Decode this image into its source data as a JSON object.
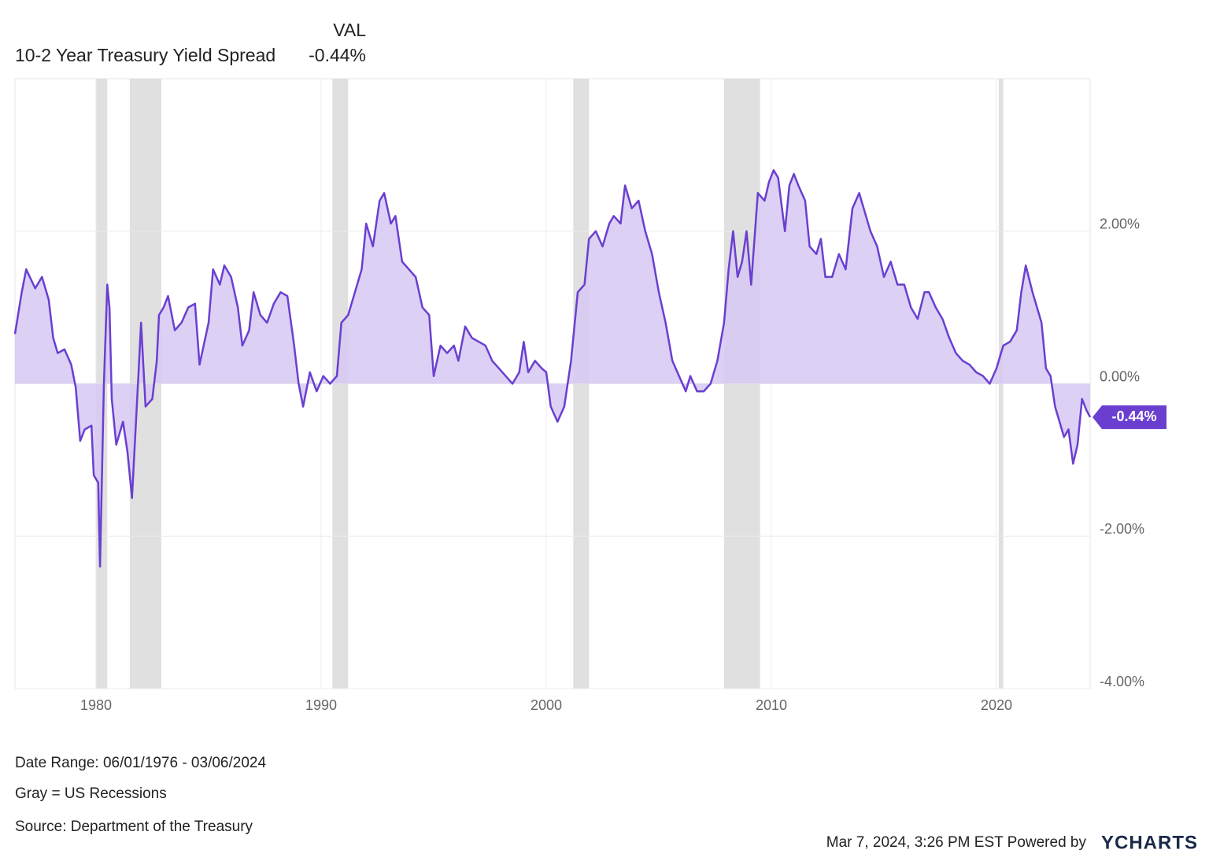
{
  "chart_data": {
    "type": "area-line",
    "value_header": "VAL",
    "current_value": -0.44,
    "current_value_label": "-0.44%",
    "x": [
      1976.4,
      1976.7,
      1976.9,
      1977.3,
      1977.6,
      1977.9,
      1978.1,
      1978.3,
      1978.6,
      1978.9,
      1979.1,
      1979.3,
      1979.5,
      1979.8,
      1979.9,
      1980.1,
      1980.18,
      1980.35,
      1980.5,
      1980.6,
      1980.7,
      1980.9,
      1981.2,
      1981.4,
      1981.6,
      1981.9,
      1982.0,
      1982.2,
      1982.5,
      1982.7,
      1982.8,
      1983.0,
      1983.2,
      1983.5,
      1983.8,
      1984.1,
      1984.4,
      1984.6,
      1985.0,
      1985.2,
      1985.5,
      1985.7,
      1986.0,
      1986.3,
      1986.5,
      1986.8,
      1987.0,
      1987.3,
      1987.6,
      1987.9,
      1988.2,
      1988.5,
      1988.8,
      1989.0,
      1989.2,
      1989.5,
      1989.8,
      1990.1,
      1990.4,
      1990.7,
      1990.9,
      1991.2,
      1991.5,
      1991.8,
      1992.0,
      1992.3,
      1992.6,
      1992.8,
      1993.1,
      1993.3,
      1993.6,
      1993.9,
      1994.2,
      1994.5,
      1994.8,
      1995.0,
      1995.3,
      1995.6,
      1995.9,
      1996.1,
      1996.4,
      1996.7,
      1997.0,
      1997.3,
      1997.6,
      1997.9,
      1998.2,
      1998.5,
      1998.8,
      1999.0,
      1999.2,
      1999.5,
      1999.8,
      2000.0,
      2000.2,
      2000.5,
      2000.8,
      2001.1,
      2001.4,
      2001.7,
      2001.9,
      2002.2,
      2002.5,
      2002.8,
      2003.0,
      2003.3,
      2003.5,
      2003.8,
      2004.1,
      2004.4,
      2004.7,
      2005.0,
      2005.3,
      2005.6,
      2005.9,
      2006.2,
      2006.4,
      2006.7,
      2007.0,
      2007.3,
      2007.6,
      2007.9,
      2008.1,
      2008.3,
      2008.5,
      2008.7,
      2008.9,
      2009.1,
      2009.4,
      2009.7,
      2009.9,
      2010.1,
      2010.3,
      2010.6,
      2010.8,
      2011.0,
      2011.2,
      2011.5,
      2011.7,
      2012.0,
      2012.2,
      2012.4,
      2012.7,
      2013.0,
      2013.3,
      2013.6,
      2013.9,
      2014.1,
      2014.4,
      2014.7,
      2015.0,
      2015.3,
      2015.6,
      2015.9,
      2016.2,
      2016.5,
      2016.8,
      2017.0,
      2017.3,
      2017.6,
      2017.9,
      2018.2,
      2018.5,
      2018.8,
      2019.1,
      2019.4,
      2019.7,
      2020.0,
      2020.3,
      2020.6,
      2020.9,
      2021.1,
      2021.3,
      2021.6,
      2021.8,
      2022.0,
      2022.2,
      2022.4,
      2022.6,
      2022.8,
      2023.0,
      2023.2,
      2023.4,
      2023.6,
      2023.8,
      2024.0,
      2024.16
    ],
    "series": [
      {
        "name": "10-2 Year Treasury Yield Spread",
        "color": "#6a3fd0",
        "fill": "#d6c8f2",
        "values": [
          0.65,
          1.2,
          1.5,
          1.25,
          1.4,
          1.1,
          0.6,
          0.4,
          0.45,
          0.25,
          -0.05,
          -0.75,
          -0.6,
          -0.55,
          -1.2,
          -1.3,
          -2.4,
          0.0,
          1.3,
          1.0,
          -0.2,
          -0.8,
          -0.5,
          -0.9,
          -1.5,
          0.2,
          0.8,
          -0.3,
          -0.2,
          0.3,
          0.9,
          1.0,
          1.15,
          0.7,
          0.8,
          1.0,
          1.05,
          0.25,
          0.8,
          1.5,
          1.3,
          1.55,
          1.4,
          1.0,
          0.5,
          0.7,
          1.2,
          0.9,
          0.8,
          1.05,
          1.2,
          1.15,
          0.5,
          0.0,
          -0.3,
          0.15,
          -0.1,
          0.1,
          0.0,
          0.1,
          0.8,
          0.9,
          1.2,
          1.5,
          2.1,
          1.8,
          2.4,
          2.5,
          2.1,
          2.2,
          1.6,
          1.5,
          1.4,
          1.0,
          0.9,
          0.1,
          0.5,
          0.4,
          0.5,
          0.3,
          0.75,
          0.6,
          0.55,
          0.5,
          0.3,
          0.2,
          0.1,
          0.0,
          0.15,
          0.55,
          0.15,
          0.3,
          0.2,
          0.15,
          -0.3,
          -0.5,
          -0.3,
          0.3,
          1.2,
          1.3,
          1.9,
          2.0,
          1.8,
          2.1,
          2.2,
          2.1,
          2.6,
          2.3,
          2.4,
          2.0,
          1.7,
          1.2,
          0.8,
          0.3,
          0.1,
          -0.1,
          0.1,
          -0.1,
          -0.1,
          0.0,
          0.3,
          0.8,
          1.5,
          2.0,
          1.4,
          1.6,
          2.0,
          1.3,
          2.5,
          2.4,
          2.65,
          2.8,
          2.7,
          2.0,
          2.6,
          2.75,
          2.6,
          2.4,
          1.8,
          1.7,
          1.9,
          1.4,
          1.4,
          1.7,
          1.5,
          2.3,
          2.5,
          2.3,
          2.0,
          1.8,
          1.4,
          1.6,
          1.3,
          1.3,
          1.0,
          0.85,
          1.2,
          1.2,
          1.0,
          0.85,
          0.6,
          0.4,
          0.3,
          0.25,
          0.15,
          0.1,
          0.0,
          0.2,
          0.5,
          0.55,
          0.7,
          1.2,
          1.55,
          1.2,
          1.0,
          0.8,
          0.2,
          0.1,
          -0.3,
          -0.5,
          -0.7,
          -0.6,
          -1.05,
          -0.8,
          -0.2,
          -0.35,
          -0.44
        ]
      }
    ],
    "recessions": [
      [
        1980.0,
        1980.5
      ],
      [
        1981.5,
        1982.9
      ],
      [
        1990.5,
        1991.2
      ],
      [
        2001.2,
        2001.9
      ],
      [
        2007.9,
        2009.5
      ],
      [
        2020.1,
        2020.3
      ]
    ],
    "recession_color": "#e0e0e0",
    "xlim": [
      1976.4,
      2024.16
    ],
    "xticks": [
      1980,
      1990,
      2000,
      2010,
      2020
    ],
    "ylim": [
      -4,
      4
    ],
    "yticks": [
      {
        "value": -4,
        "label": "-4.00%"
      },
      {
        "value": -2,
        "label": "-2.00%"
      },
      {
        "value": 0,
        "label": "0.00%"
      },
      {
        "value": 2,
        "label": "2.00%"
      }
    ],
    "grid": true,
    "notes": [
      "Date Range: 06/01/1976 - 03/06/2024",
      "Gray = US Recessions",
      "Source: Department of the Treasury"
    ],
    "timestamp": "Mar 7, 2024, 3:26 PM EST Powered by",
    "brand": "YCHARTS"
  }
}
